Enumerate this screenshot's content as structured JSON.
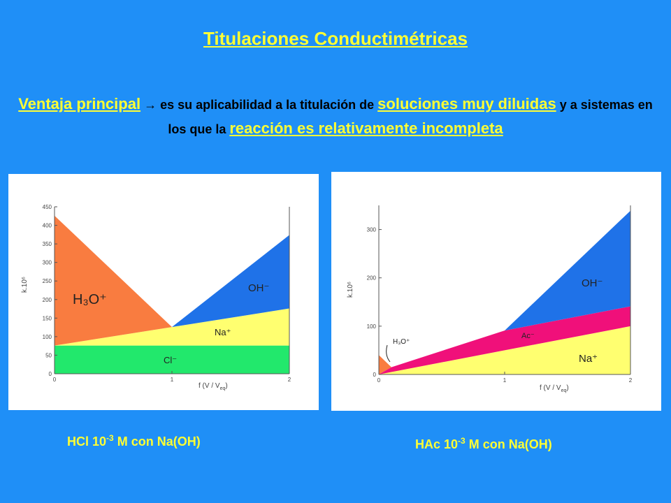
{
  "slide": {
    "title": "Titulaciones Conductimétricas",
    "intro": {
      "p1": "Ventaja principal",
      "arrow": "→",
      "p2": " es su aplicabilidad a la titulación de ",
      "p3": "soluciones muy diluidas",
      "p4": " y a sistemas en los que la ",
      "p5": "reacción es relativamente incompleta"
    },
    "caption1": {
      "pre": "HCl 10",
      "sup": "-3",
      "post": " M con Na(OH)"
    },
    "caption2": {
      "pre": "HAc 10",
      "sup": "-3",
      "post": " M con Na(OH)"
    }
  },
  "colors": {
    "h3o": "#f97c40",
    "oh": "#1f72e8",
    "na": "#ffff70",
    "cl": "#22e86c",
    "ac": "#f0107a"
  },
  "chart_data": [
    {
      "type": "area",
      "ylabel": "k.10⁶",
      "xlabel": "f (V / V",
      "xlabel_sub": "eq",
      "xlabel_end": ")",
      "xlim": [
        0,
        2
      ],
      "ylim": [
        0,
        450
      ],
      "x_ticks": [
        "0",
        "1",
        "2"
      ],
      "y_ticks": [
        "0",
        "50",
        "100",
        "150",
        "200",
        "250",
        "300",
        "350",
        "400",
        "450"
      ],
      "x": [
        0,
        1,
        2
      ],
      "series": [
        {
          "name": "Cl⁻",
          "values": [
            76,
            76,
            76
          ]
        },
        {
          "name": "Na⁺",
          "values": [
            0,
            50,
            100
          ]
        },
        {
          "name": "H₃O⁺",
          "values": [
            350,
            0,
            0
          ]
        },
        {
          "name": "OH⁻",
          "values": [
            0,
            0,
            198
          ]
        }
      ]
    },
    {
      "type": "area",
      "ylabel": "k.10⁶",
      "xlabel": "f (V / V",
      "xlabel_sub": "eq",
      "xlabel_end": ")",
      "xlim": [
        0,
        2
      ],
      "ylim": [
        0,
        350
      ],
      "x_ticks": [
        "0",
        "1",
        "2"
      ],
      "y_ticks": [
        "0",
        "100",
        "200",
        "300"
      ],
      "x": [
        0,
        0.1,
        1,
        2
      ],
      "series": [
        {
          "name": "Na⁺",
          "values": [
            0,
            5,
            50,
            100
          ]
        },
        {
          "name": "Ac⁻",
          "values": [
            0,
            10,
            41,
            41
          ]
        },
        {
          "name": "H₃O⁺",
          "values": [
            40,
            0,
            0,
            0
          ]
        },
        {
          "name": "OH⁻",
          "values": [
            0,
            0,
            0,
            198
          ]
        }
      ]
    }
  ]
}
